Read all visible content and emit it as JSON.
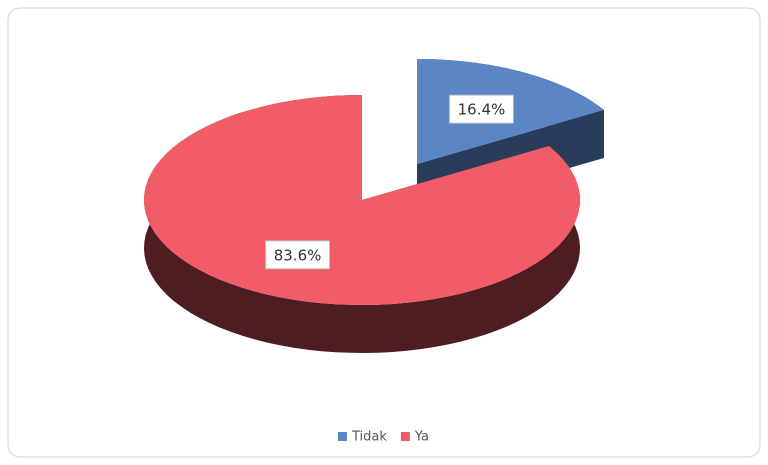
{
  "chart_data": {
    "type": "pie3d",
    "categories": [
      "Tidak",
      "Ya"
    ],
    "values": [
      16.4,
      83.6
    ],
    "value_labels": [
      "16.4%",
      "83.6%"
    ],
    "colors": [
      "#5b86c6",
      "#f25c68"
    ],
    "legend": "bottom"
  }
}
